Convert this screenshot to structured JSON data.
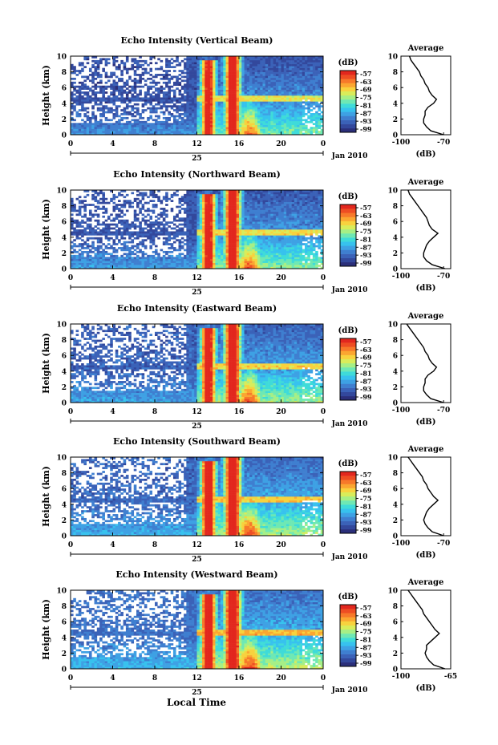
{
  "figure": {
    "date_label": "Jan 2010",
    "day_label": "25",
    "xlabel": "Local Time"
  },
  "colormap": [
    "#2b2f7a",
    "#33489c",
    "#3b62b8",
    "#3f7fd0",
    "#3ea1e4",
    "#37c2ee",
    "#3fdbd9",
    "#6ee8b4",
    "#a6ef86",
    "#d9ec5a",
    "#f8d23e",
    "#fba631",
    "#f7792a",
    "#ee4d23",
    "#e2271e"
  ],
  "chart_data": [
    {
      "type": "heatmap",
      "title": "Echo Intensity (Vertical Beam)",
      "xlabel": "Local Time",
      "ylabel": "Height (km)",
      "x_ticks": [
        "0",
        "4",
        "8",
        "12",
        "16",
        "20",
        "0"
      ],
      "y_ticks": [
        "0",
        "2",
        "4",
        "6",
        "8",
        "10"
      ],
      "xlim": [
        0,
        24
      ],
      "ylim": [
        0,
        10
      ],
      "colorbar": {
        "title": "(dB)",
        "ticks": [
          "-57",
          "-63",
          "-69",
          "-75",
          "-81",
          "-87",
          "-93",
          "-99"
        ],
        "range": [
          -99,
          -57
        ]
      },
      "profile": {
        "title": "Average",
        "xlabel": "(dB)",
        "x_ticks": [
          "-100",
          "-70"
        ],
        "xlim": [
          -100,
          -65
        ],
        "y_ticks": [
          "0",
          "2",
          "4",
          "6",
          "8",
          "10"
        ],
        "heights": [
          0,
          0.5,
          1,
          1.5,
          2,
          2.5,
          3,
          3.5,
          4,
          4.5,
          5,
          5.5,
          6,
          6.5,
          7,
          7.5,
          8,
          8.5,
          9,
          9.5,
          10
        ],
        "values": [
          -70,
          -79,
          -82,
          -84,
          -84,
          -83,
          -83,
          -81,
          -77,
          -75,
          -78,
          -80,
          -81,
          -83,
          -84,
          -86,
          -87,
          -89,
          -91,
          -93,
          -94
        ]
      }
    },
    {
      "type": "heatmap",
      "title": "Echo Intensity (Northward Beam)",
      "xlabel": "Local Time",
      "ylabel": "Height (km)",
      "x_ticks": [
        "0",
        "4",
        "8",
        "12",
        "16",
        "20",
        "0"
      ],
      "y_ticks": [
        "0",
        "2",
        "4",
        "6",
        "8",
        "10"
      ],
      "xlim": [
        0,
        24
      ],
      "ylim": [
        0,
        10
      ],
      "colorbar": {
        "title": "(dB)",
        "ticks": [
          "-57",
          "-63",
          "-69",
          "-75",
          "-81",
          "-87",
          "-93",
          "-99"
        ],
        "range": [
          -99,
          -57
        ]
      },
      "profile": {
        "title": "Average",
        "xlabel": "(dB)",
        "x_ticks": [
          "-100",
          "-70"
        ],
        "xlim": [
          -100,
          -65
        ],
        "y_ticks": [
          "0",
          "2",
          "4",
          "6",
          "8",
          "10"
        ],
        "heights": [
          0,
          0.5,
          1,
          1.5,
          2,
          2.5,
          3,
          3.5,
          4,
          4.5,
          5,
          5.5,
          6,
          6.5,
          7,
          7.5,
          8,
          8.5,
          9,
          9.5,
          10
        ],
        "values": [
          -69,
          -78,
          -82,
          -84,
          -84,
          -83,
          -82,
          -80,
          -77,
          -74,
          -78,
          -80,
          -81,
          -82,
          -84,
          -86,
          -88,
          -90,
          -92,
          -94,
          -95
        ]
      }
    },
    {
      "type": "heatmap",
      "title": "Echo Intensity (Eastward Beam)",
      "xlabel": "Local Time",
      "ylabel": "Height (km)",
      "x_ticks": [
        "0",
        "4",
        "8",
        "12",
        "16",
        "20",
        "0"
      ],
      "y_ticks": [
        "0",
        "2",
        "4",
        "6",
        "8",
        "10"
      ],
      "xlim": [
        0,
        24
      ],
      "ylim": [
        0,
        10
      ],
      "colorbar": {
        "title": "(dB)",
        "ticks": [
          "-57",
          "-63",
          "-69",
          "-75",
          "-81",
          "-87",
          "-93",
          "-99"
        ],
        "range": [
          -99,
          -57
        ]
      },
      "profile": {
        "title": "Average",
        "xlabel": "(dB)",
        "x_ticks": [
          "-100",
          "-70"
        ],
        "xlim": [
          -100,
          -65
        ],
        "y_ticks": [
          "0",
          "2",
          "4",
          "6",
          "8",
          "10"
        ],
        "heights": [
          0,
          0.5,
          1,
          1.5,
          2,
          2.5,
          3,
          3.5,
          4,
          4.5,
          5,
          5.5,
          6,
          6.5,
          7,
          7.5,
          8,
          8.5,
          9,
          9.5,
          10
        ],
        "values": [
          -70,
          -79,
          -82,
          -84,
          -84,
          -83,
          -83,
          -81,
          -77,
          -75,
          -78,
          -80,
          -81,
          -83,
          -84,
          -86,
          -88,
          -90,
          -92,
          -94,
          -96
        ]
      }
    },
    {
      "type": "heatmap",
      "title": "Echo Intensity (Southward Beam)",
      "xlabel": "Local Time",
      "ylabel": "Height (km)",
      "x_ticks": [
        "0",
        "4",
        "8",
        "12",
        "16",
        "20",
        "0"
      ],
      "y_ticks": [
        "0",
        "2",
        "4",
        "6",
        "8",
        "10"
      ],
      "xlim": [
        0,
        24
      ],
      "ylim": [
        0,
        10
      ],
      "colorbar": {
        "title": "(dB)",
        "ticks": [
          "-57",
          "-63",
          "-69",
          "-75",
          "-81",
          "-87",
          "-93",
          "-99"
        ],
        "range": [
          -99,
          -57
        ]
      },
      "profile": {
        "title": "Average",
        "xlabel": "(dB)",
        "x_ticks": [
          "-100",
          "-70"
        ],
        "xlim": [
          -100,
          -65
        ],
        "y_ticks": [
          "0",
          "2",
          "4",
          "6",
          "8",
          "10"
        ],
        "heights": [
          0,
          0.5,
          1,
          1.5,
          2,
          2.5,
          3,
          3.5,
          4,
          4.5,
          5,
          5.5,
          6,
          6.5,
          7,
          7.5,
          8,
          8.5,
          9,
          9.5,
          10
        ],
        "values": [
          -70,
          -78,
          -81,
          -83,
          -84,
          -83,
          -82,
          -80,
          -77,
          -74,
          -77,
          -79,
          -81,
          -82,
          -84,
          -85,
          -87,
          -89,
          -91,
          -93,
          -95
        ]
      }
    },
    {
      "type": "heatmap",
      "title": "Echo Intensity (Westward Beam)",
      "xlabel": "Local Time",
      "ylabel": "Height (km)",
      "x_ticks": [
        "0",
        "4",
        "8",
        "12",
        "16",
        "20",
        "0"
      ],
      "y_ticks": [
        "0",
        "2",
        "4",
        "6",
        "8",
        "10"
      ],
      "xlim": [
        0,
        24
      ],
      "ylim": [
        0,
        10
      ],
      "colorbar": {
        "title": "(dB)",
        "ticks": [
          "-57",
          "-63",
          "-69",
          "-75",
          "-81",
          "-87",
          "-93",
          "-99"
        ],
        "range": [
          -99,
          -57
        ]
      },
      "profile": {
        "title": "Average",
        "xlabel": "(dB)",
        "x_ticks": [
          "-100",
          "-65"
        ],
        "xlim": [
          -100,
          -65
        ],
        "y_ticks": [
          "0",
          "2",
          "4",
          "6",
          "8",
          "10"
        ],
        "heights": [
          0,
          0.5,
          1,
          1.5,
          2,
          2.5,
          3,
          3.5,
          4,
          4.5,
          5,
          5.5,
          6,
          6.5,
          7,
          7.5,
          8,
          8.5,
          9,
          9.5,
          10
        ],
        "values": [
          -69,
          -77,
          -80,
          -82,
          -83,
          -82,
          -82,
          -79,
          -76,
          -73,
          -76,
          -78,
          -80,
          -82,
          -84,
          -85,
          -87,
          -89,
          -91,
          -93,
          -95
        ]
      }
    }
  ]
}
